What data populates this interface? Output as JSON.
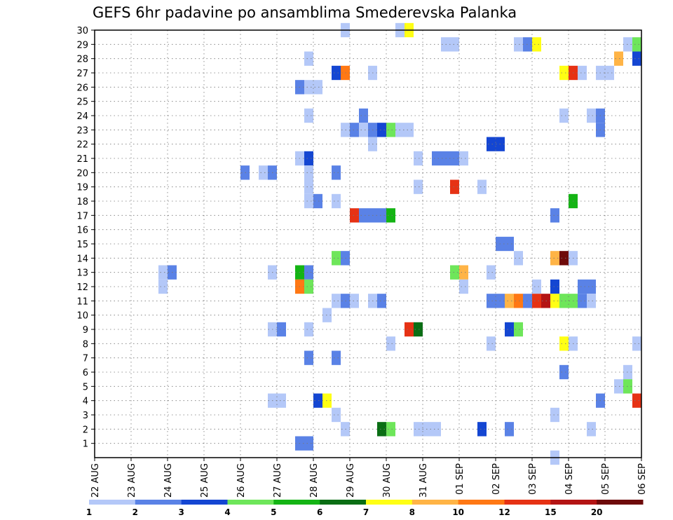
{
  "chart_data": {
    "type": "heatmap",
    "title": "GEFS 6hr padavine po ansamblima Smederevska Palanka",
    "xlabel": "",
    "ylabel": "",
    "x_ticks": [
      {
        "label": "22 AUG",
        "t": 0
      },
      {
        "label": "23 AUG",
        "t": 4
      },
      {
        "label": "24 AUG",
        "t": 8
      },
      {
        "label": "25 AUG",
        "t": 12
      },
      {
        "label": "26 AUG",
        "t": 16
      },
      {
        "label": "27 AUG",
        "t": 20
      },
      {
        "label": "28 AUG",
        "t": 24
      },
      {
        "label": "29 AUG",
        "t": 28
      },
      {
        "label": "30 AUG",
        "t": 32
      },
      {
        "label": "31 AUG",
        "t": 36
      },
      {
        "label": "01 SEP",
        "t": 40
      },
      {
        "label": "02 SEP",
        "t": 44
      },
      {
        "label": "03 SEP",
        "t": 48
      },
      {
        "label": "04 SEP",
        "t": 52
      },
      {
        "label": "05 SEP",
        "t": 56
      },
      {
        "label": "06 SEP",
        "t": 60
      }
    ],
    "x_unit": "6-hour step from 22 AUG 00Z",
    "x_range": [
      0,
      60
    ],
    "y_ticks": [
      1,
      2,
      3,
      4,
      5,
      6,
      7,
      8,
      9,
      10,
      11,
      12,
      13,
      14,
      15,
      16,
      17,
      18,
      19,
      20,
      21,
      22,
      23,
      24,
      25,
      26,
      27,
      28,
      29,
      30
    ],
    "y_range": [
      0,
      30
    ],
    "grid": true,
    "legend_position": "bottom",
    "legend": [
      {
        "label": "1",
        "color": "#b4c8f8"
      },
      {
        "label": "2",
        "color": "#5a82e6"
      },
      {
        "label": "3",
        "color": "#1446d2"
      },
      {
        "label": "4",
        "color": "#6ee65a"
      },
      {
        "label": "5",
        "color": "#14b414"
      },
      {
        "label": "6",
        "color": "#0a6e14"
      },
      {
        "label": "7",
        "color": "#ffff14"
      },
      {
        "label": "8",
        "color": "#ffb446"
      },
      {
        "label": "10",
        "color": "#ff7814"
      },
      {
        "label": "12",
        "color": "#e63214"
      },
      {
        "label": "15",
        "color": "#b41414"
      },
      {
        "label": "20",
        "color": "#6e0a0a"
      }
    ],
    "legend_end_label": "",
    "cells": [
      {
        "m": 30,
        "t": 27.5,
        "c": 1
      },
      {
        "m": 30,
        "t": 33.5,
        "c": 1
      },
      {
        "m": 30,
        "t": 34.5,
        "c": 7
      },
      {
        "m": 29,
        "t": 38.5,
        "c": 1
      },
      {
        "m": 29,
        "t": 39.5,
        "c": 1
      },
      {
        "m": 29,
        "t": 46.5,
        "c": 1
      },
      {
        "m": 29,
        "t": 47.5,
        "c": 2
      },
      {
        "m": 29,
        "t": 48.5,
        "c": 7
      },
      {
        "m": 29,
        "t": 58.5,
        "c": 1
      },
      {
        "m": 29,
        "t": 59.5,
        "c": 4
      },
      {
        "m": 28,
        "t": 23.5,
        "c": 1
      },
      {
        "m": 28,
        "t": 57.5,
        "c": 8
      },
      {
        "m": 28,
        "t": 59.5,
        "c": 3
      },
      {
        "m": 27,
        "t": 26.5,
        "c": 3
      },
      {
        "m": 27,
        "t": 27.5,
        "c": 10
      },
      {
        "m": 27,
        "t": 30.5,
        "c": 1
      },
      {
        "m": 27,
        "t": 51.5,
        "c": 7
      },
      {
        "m": 27,
        "t": 52.5,
        "c": 12
      },
      {
        "m": 27,
        "t": 53.5,
        "c": 1
      },
      {
        "m": 27,
        "t": 55.5,
        "c": 1
      },
      {
        "m": 27,
        "t": 56.5,
        "c": 1
      },
      {
        "m": 26,
        "t": 22.5,
        "c": 2
      },
      {
        "m": 26,
        "t": 23.5,
        "c": 1
      },
      {
        "m": 26,
        "t": 24.5,
        "c": 1
      },
      {
        "m": 24,
        "t": 23.5,
        "c": 1
      },
      {
        "m": 24,
        "t": 29.5,
        "c": 2
      },
      {
        "m": 24,
        "t": 51.5,
        "c": 1
      },
      {
        "m": 24,
        "t": 54.5,
        "c": 1
      },
      {
        "m": 24,
        "t": 55.5,
        "c": 2
      },
      {
        "m": 23,
        "t": 27.5,
        "c": 1
      },
      {
        "m": 23,
        "t": 28.5,
        "c": 2
      },
      {
        "m": 23,
        "t": 29.5,
        "c": 1
      },
      {
        "m": 23,
        "t": 30.5,
        "c": 2
      },
      {
        "m": 23,
        "t": 31.5,
        "c": 3
      },
      {
        "m": 23,
        "t": 32.5,
        "c": 4
      },
      {
        "m": 23,
        "t": 33.5,
        "c": 1
      },
      {
        "m": 23,
        "t": 34.5,
        "c": 1
      },
      {
        "m": 23,
        "t": 55.5,
        "c": 2
      },
      {
        "m": 22,
        "t": 30.5,
        "c": 1
      },
      {
        "m": 22,
        "t": 43.5,
        "c": 3
      },
      {
        "m": 22,
        "t": 44.5,
        "c": 3
      },
      {
        "m": 21,
        "t": 22.5,
        "c": 1
      },
      {
        "m": 21,
        "t": 23.5,
        "c": 3
      },
      {
        "m": 21,
        "t": 35.5,
        "c": 1
      },
      {
        "m": 21,
        "t": 37.5,
        "c": 2
      },
      {
        "m": 21,
        "t": 38.5,
        "c": 2
      },
      {
        "m": 21,
        "t": 39.5,
        "c": 2
      },
      {
        "m": 21,
        "t": 40.5,
        "c": 1
      },
      {
        "m": 20,
        "t": 16.5,
        "c": 2
      },
      {
        "m": 20,
        "t": 18.5,
        "c": 1
      },
      {
        "m": 20,
        "t": 19.5,
        "c": 2
      },
      {
        "m": 20,
        "t": 23.5,
        "c": 1
      },
      {
        "m": 20,
        "t": 26.5,
        "c": 2
      },
      {
        "m": 19,
        "t": 23.5,
        "c": 1
      },
      {
        "m": 19,
        "t": 35.5,
        "c": 1
      },
      {
        "m": 19,
        "t": 39.5,
        "c": 12
      },
      {
        "m": 19,
        "t": 42.5,
        "c": 1
      },
      {
        "m": 18,
        "t": 23.5,
        "c": 1
      },
      {
        "m": 18,
        "t": 24.5,
        "c": 2
      },
      {
        "m": 18,
        "t": 26.5,
        "c": 1
      },
      {
        "m": 18,
        "t": 52.5,
        "c": 5
      },
      {
        "m": 17,
        "t": 28.5,
        "c": 12
      },
      {
        "m": 17,
        "t": 29.5,
        "c": 2
      },
      {
        "m": 17,
        "t": 30.5,
        "c": 2
      },
      {
        "m": 17,
        "t": 31.5,
        "c": 2
      },
      {
        "m": 17,
        "t": 32.5,
        "c": 5
      },
      {
        "m": 17,
        "t": 50.5,
        "c": 2
      },
      {
        "m": 15,
        "t": 44.5,
        "c": 2
      },
      {
        "m": 15,
        "t": 45.5,
        "c": 2
      },
      {
        "m": 14,
        "t": 26.5,
        "c": 4
      },
      {
        "m": 14,
        "t": 27.5,
        "c": 2
      },
      {
        "m": 14,
        "t": 46.5,
        "c": 1
      },
      {
        "m": 14,
        "t": 50.5,
        "c": 8
      },
      {
        "m": 14,
        "t": 51.5,
        "c": 20
      },
      {
        "m": 14,
        "t": 52.5,
        "c": 1
      },
      {
        "m": 13,
        "t": 7.5,
        "c": 1
      },
      {
        "m": 13,
        "t": 8.5,
        "c": 2
      },
      {
        "m": 13,
        "t": 19.5,
        "c": 1
      },
      {
        "m": 13,
        "t": 22.5,
        "c": 5
      },
      {
        "m": 13,
        "t": 23.5,
        "c": 2
      },
      {
        "m": 13,
        "t": 39.5,
        "c": 4
      },
      {
        "m": 13,
        "t": 40.5,
        "c": 8
      },
      {
        "m": 13,
        "t": 43.5,
        "c": 1
      },
      {
        "m": 12,
        "t": 7.5,
        "c": 1
      },
      {
        "m": 12,
        "t": 22.5,
        "c": 10
      },
      {
        "m": 12,
        "t": 23.5,
        "c": 4
      },
      {
        "m": 12,
        "t": 40.5,
        "c": 1
      },
      {
        "m": 12,
        "t": 48.5,
        "c": 1
      },
      {
        "m": 12,
        "t": 50.5,
        "c": 3
      },
      {
        "m": 12,
        "t": 53.5,
        "c": 2
      },
      {
        "m": 12,
        "t": 54.5,
        "c": 2
      },
      {
        "m": 11,
        "t": 26.5,
        "c": 1
      },
      {
        "m": 11,
        "t": 27.5,
        "c": 2
      },
      {
        "m": 11,
        "t": 28.5,
        "c": 1
      },
      {
        "m": 11,
        "t": 30.5,
        "c": 1
      },
      {
        "m": 11,
        "t": 31.5,
        "c": 2
      },
      {
        "m": 11,
        "t": 43.5,
        "c": 2
      },
      {
        "m": 11,
        "t": 44.5,
        "c": 2
      },
      {
        "m": 11,
        "t": 45.5,
        "c": 8
      },
      {
        "m": 11,
        "t": 46.5,
        "c": 10
      },
      {
        "m": 11,
        "t": 47.5,
        "c": 2
      },
      {
        "m": 11,
        "t": 48.5,
        "c": 12
      },
      {
        "m": 11,
        "t": 49.5,
        "c": 15
      },
      {
        "m": 11,
        "t": 50.5,
        "c": 7
      },
      {
        "m": 11,
        "t": 51.5,
        "c": 4
      },
      {
        "m": 11,
        "t": 52.5,
        "c": 4
      },
      {
        "m": 11,
        "t": 53.5,
        "c": 2
      },
      {
        "m": 11,
        "t": 54.5,
        "c": 1
      },
      {
        "m": 10,
        "t": 25.5,
        "c": 1
      },
      {
        "m": 9,
        "t": 19.5,
        "c": 1
      },
      {
        "m": 9,
        "t": 20.5,
        "c": 2
      },
      {
        "m": 9,
        "t": 23.5,
        "c": 1
      },
      {
        "m": 9,
        "t": 34.5,
        "c": 12
      },
      {
        "m": 9,
        "t": 35.5,
        "c": 6
      },
      {
        "m": 9,
        "t": 45.5,
        "c": 3
      },
      {
        "m": 9,
        "t": 46.5,
        "c": 4
      },
      {
        "m": 8,
        "t": 32.5,
        "c": 1
      },
      {
        "m": 8,
        "t": 43.5,
        "c": 1
      },
      {
        "m": 8,
        "t": 51.5,
        "c": 7
      },
      {
        "m": 8,
        "t": 52.5,
        "c": 1
      },
      {
        "m": 8,
        "t": 59.5,
        "c": 1
      },
      {
        "m": 7,
        "t": 23.5,
        "c": 2
      },
      {
        "m": 7,
        "t": 26.5,
        "c": 2
      },
      {
        "m": 6,
        "t": 51.5,
        "c": 2
      },
      {
        "m": 6,
        "t": 58.5,
        "c": 1
      },
      {
        "m": 5,
        "t": 57.5,
        "c": 1
      },
      {
        "m": 5,
        "t": 58.5,
        "c": 4
      },
      {
        "m": 4,
        "t": 19.5,
        "c": 1
      },
      {
        "m": 4,
        "t": 20.5,
        "c": 1
      },
      {
        "m": 4,
        "t": 24.5,
        "c": 3
      },
      {
        "m": 4,
        "t": 25.5,
        "c": 7
      },
      {
        "m": 4,
        "t": 55.5,
        "c": 2
      },
      {
        "m": 4,
        "t": 59.5,
        "c": 12
      },
      {
        "m": 3,
        "t": 26.5,
        "c": 1
      },
      {
        "m": 3,
        "t": 50.5,
        "c": 1
      },
      {
        "m": 2,
        "t": 27.5,
        "c": 1
      },
      {
        "m": 2,
        "t": 31.5,
        "c": 6
      },
      {
        "m": 2,
        "t": 32.5,
        "c": 4
      },
      {
        "m": 2,
        "t": 35.5,
        "c": 1
      },
      {
        "m": 2,
        "t": 36.5,
        "c": 1
      },
      {
        "m": 2,
        "t": 37.5,
        "c": 1
      },
      {
        "m": 2,
        "t": 42.5,
        "c": 3
      },
      {
        "m": 2,
        "t": 45.5,
        "c": 2
      },
      {
        "m": 2,
        "t": 54.5,
        "c": 1
      },
      {
        "m": 1,
        "t": 22.5,
        "c": 2
      },
      {
        "m": 1,
        "t": 23.5,
        "c": 2
      },
      {
        "m": 0,
        "t": 50.5,
        "c": 1
      }
    ]
  }
}
